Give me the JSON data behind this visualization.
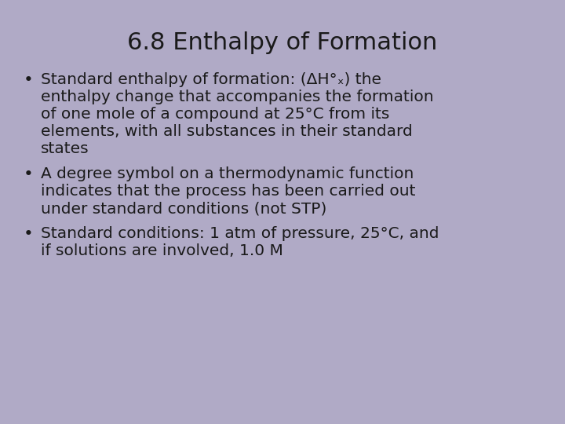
{
  "title": "6.8 Enthalpy of Formation",
  "background_color": "#b0aac6",
  "title_color": "#1a1a1a",
  "text_color": "#1a1a1a",
  "title_fontsize": 22,
  "body_fontsize": 14.5,
  "bullet_line1": "Standard enthalpy of formation: (ΔH°ₓ) the",
  "bullet_line1b": "enthalpy change that accompanies the formation",
  "bullet_line1c": "of one mole of a compound at 25°C from its",
  "bullet_line1d": "elements, with all substances in their standard",
  "bullet_line1e": "states",
  "bullet_line2": "A degree symbol on a thermodynamic function",
  "bullet_line2b": "indicates that the process has been carried out",
  "bullet_line2c": "under standard conditions (not STP)",
  "bullet_line3": "Standard conditions: 1 atm of pressure, 25°C, and",
  "bullet_line3b": "if solutions are involved, 1.0 M",
  "bullet_points": [
    "Standard enthalpy of formation: (ΔH°ₓ) the\nenthalpy change that accompanies the formation\nof one mole of a compound at 25°C from its\nelements, with all substances in their standard\nstates",
    "A degree symbol on a thermodynamic function\nindicates that the process has been carried out\nunder standard conditions (not STP)",
    "Standard conditions: 1 atm of pressure, 25°C, and\nif solutions are involved, 1.0 M"
  ]
}
